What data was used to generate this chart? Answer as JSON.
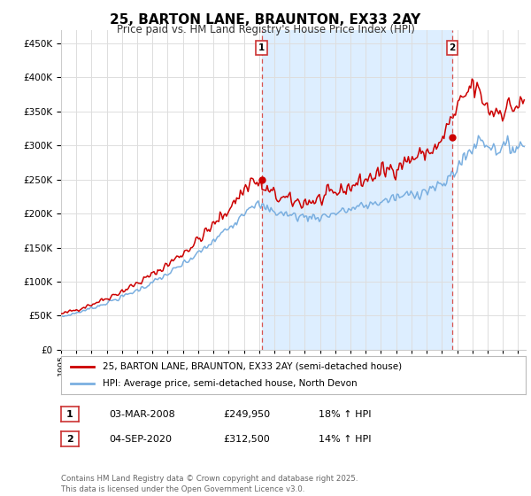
{
  "title": "25, BARTON LANE, BRAUNTON, EX33 2AY",
  "subtitle": "Price paid vs. HM Land Registry's House Price Index (HPI)",
  "ytick_values": [
    0,
    50000,
    100000,
    150000,
    200000,
    250000,
    300000,
    350000,
    400000,
    450000
  ],
  "ylim": [
    0,
    470000
  ],
  "xlim_start": 1995.0,
  "xlim_end": 2025.5,
  "x_years": [
    1995,
    1996,
    1997,
    1998,
    1999,
    2000,
    2001,
    2002,
    2003,
    2004,
    2005,
    2006,
    2007,
    2008,
    2009,
    2010,
    2011,
    2012,
    2013,
    2014,
    2015,
    2016,
    2017,
    2018,
    2019,
    2020,
    2021,
    2022,
    2023,
    2024,
    2025
  ],
  "sale1_x": 2008.17,
  "sale1_y": 249950,
  "sale2_x": 2020.67,
  "sale2_y": 312500,
  "vline_color": "#d9534f",
  "red_line_color": "#cc0000",
  "blue_line_color": "#7aafe0",
  "shade_color": "#ddeeff",
  "legend_label1": "25, BARTON LANE, BRAUNTON, EX33 2AY (semi-detached house)",
  "legend_label2": "HPI: Average price, semi-detached house, North Devon",
  "footnote": "Contains HM Land Registry data © Crown copyright and database right 2025.\nThis data is licensed under the Open Government Licence v3.0.",
  "grid_color": "#dddddd"
}
